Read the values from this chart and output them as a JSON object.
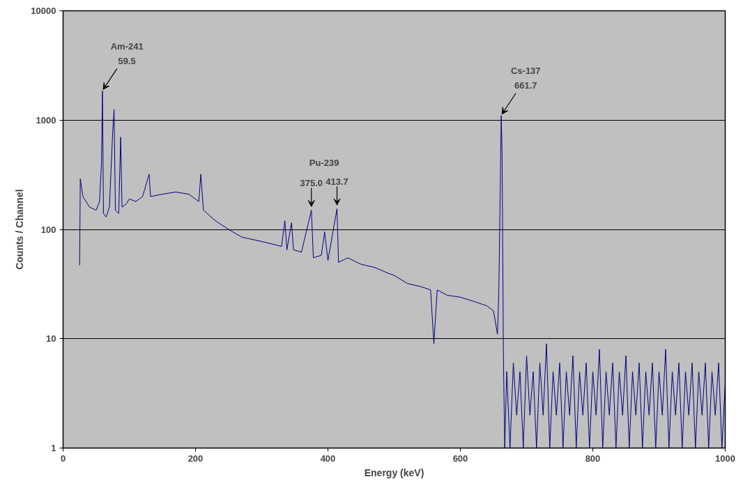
{
  "chart_data": {
    "type": "line",
    "xlabel": "Energy (keV)",
    "ylabel": "Counts / Channel",
    "log": "y",
    "grid": "y",
    "marker": "none",
    "line_style": "solid",
    "xlim": [
      0,
      1000
    ],
    "xticks": [
      0,
      200,
      400,
      600,
      800,
      1000
    ],
    "ylim": [
      1,
      10000
    ],
    "yticks": [
      1,
      10,
      100,
      1000,
      10000
    ],
    "annotations": [
      {
        "text": "Am-241\n59.5",
        "x": 59.5,
        "y": 1850
      },
      {
        "text": "Pu-239"
      },
      {
        "text": "375.0",
        "x": 375,
        "y": 150
      },
      {
        "text": "413.7",
        "x": 413.7,
        "y": 155
      },
      {
        "text": "Cs-137\n661.7",
        "x": 661.7,
        "y": 1100
      }
    ],
    "series": [
      {
        "color": "#000080",
        "x": [
          25,
          26,
          30,
          40,
          50,
          55,
          58,
          59.5,
          61,
          65,
          70,
          75,
          77,
          79,
          84,
          87,
          89,
          95,
          100,
          110,
          120,
          130,
          132,
          150,
          170,
          190,
          205,
          208,
          212,
          230,
          250,
          270,
          290,
          310,
          330,
          335,
          338,
          345,
          348,
          360,
          375,
          378,
          390,
          395,
          400,
          413.7,
          416,
          430,
          450,
          470,
          490,
          500,
          520,
          540,
          555,
          560,
          565,
          580,
          600,
          620,
          640,
          650,
          656,
          658,
          661.7,
          663,
          665,
          667,
          670,
          675,
          680,
          685,
          690,
          695,
          700,
          705,
          710,
          715,
          720,
          725,
          730,
          735,
          740,
          745,
          750,
          755,
          760,
          765,
          770,
          775,
          780,
          785,
          790,
          795,
          800,
          805,
          810,
          815,
          820,
          825,
          830,
          835,
          840,
          845,
          850,
          855,
          860,
          865,
          870,
          875,
          880,
          885,
          890,
          895,
          900,
          905,
          910,
          915,
          920,
          925,
          930,
          935,
          940,
          945,
          950,
          955,
          960,
          965,
          970,
          975,
          980,
          985,
          990,
          995,
          1000
        ],
        "values": [
          47,
          290,
          200,
          160,
          150,
          180,
          400,
          1850,
          140,
          130,
          160,
          800,
          1250,
          150,
          140,
          700,
          160,
          170,
          190,
          180,
          200,
          320,
          200,
          210,
          220,
          210,
          180,
          320,
          150,
          120,
          100,
          85,
          80,
          75,
          70,
          120,
          65,
          115,
          65,
          62,
          150,
          55,
          58,
          95,
          52,
          155,
          50,
          55,
          48,
          45,
          40,
          38,
          32,
          30,
          28,
          9,
          28,
          25,
          24,
          22,
          20,
          18,
          11,
          25,
          1100,
          500,
          7,
          1,
          5,
          1,
          6,
          2,
          5,
          1,
          7,
          2,
          5,
          1,
          6,
          2,
          9,
          1,
          5,
          2,
          6,
          1,
          5,
          2,
          7,
          1,
          5,
          2,
          6,
          1,
          5,
          2,
          8,
          1,
          5,
          2,
          6,
          1,
          5,
          2,
          7,
          1,
          5,
          2,
          6,
          1,
          5,
          2,
          6,
          1,
          5,
          2,
          8,
          1,
          5,
          2,
          6,
          1,
          5,
          2,
          6,
          1,
          5,
          2,
          6,
          1,
          5,
          2,
          6,
          1,
          4
        ]
      }
    ]
  }
}
